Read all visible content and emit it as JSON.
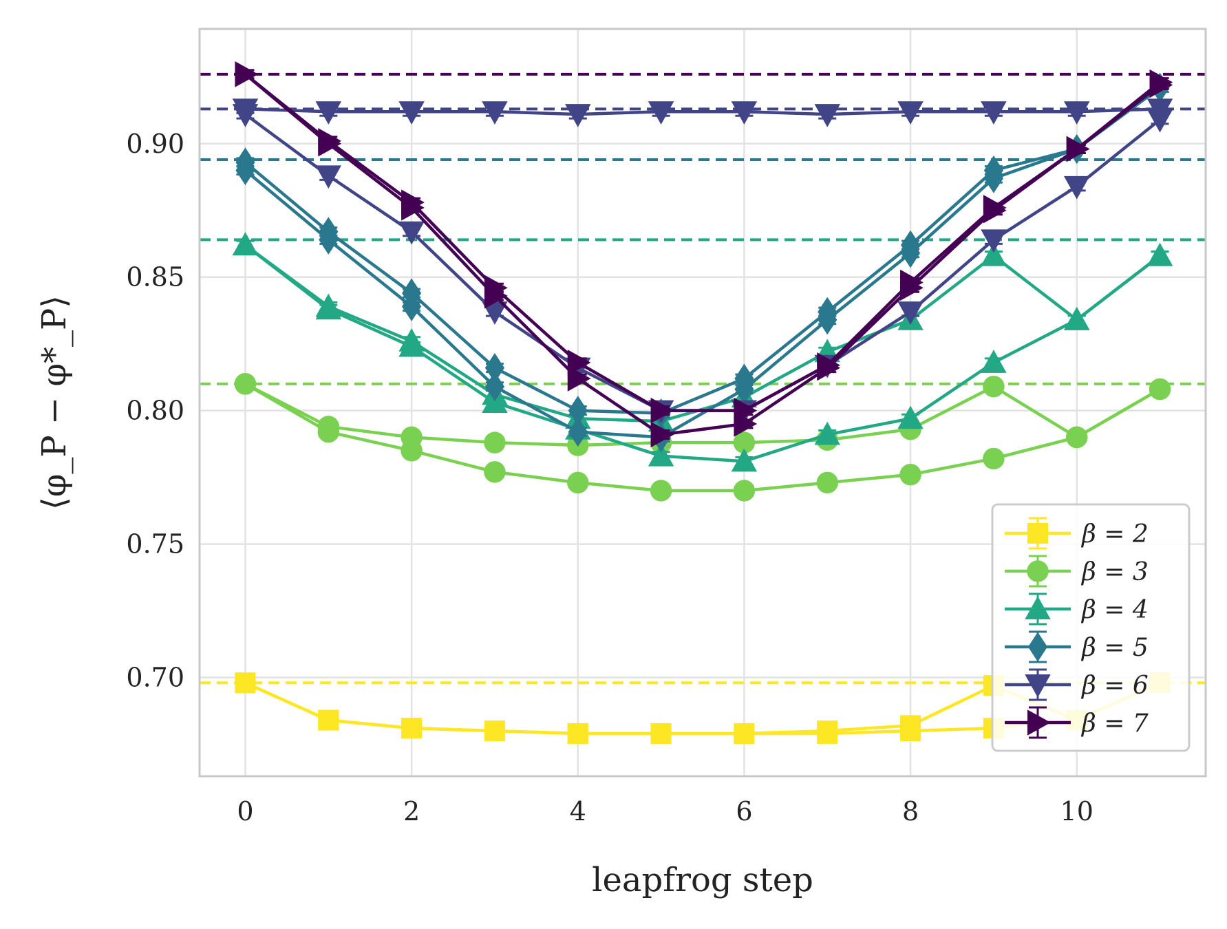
{
  "chart_data": {
    "type": "line",
    "xlabel": "leapfrog step",
    "ylabel": "⟨φ_P − φ*_P⟩",
    "xlim": [
      -0.55,
      11.55
    ],
    "ylim": [
      0.663,
      0.943
    ],
    "xticks": [
      0,
      2,
      4,
      6,
      8,
      10
    ],
    "xtick_labels": [
      "0",
      "2",
      "4",
      "6",
      "8",
      "10"
    ],
    "yticks": [
      0.7,
      0.75,
      0.8,
      0.85,
      0.9
    ],
    "ytick_labels": [
      "0.70",
      "0.75",
      "0.80",
      "0.85",
      "0.90"
    ],
    "grid": true,
    "legend_position": "bottom-right",
    "x": [
      0,
      1,
      2,
      3,
      4,
      5,
      6,
      7,
      8,
      9,
      10,
      11
    ],
    "series": [
      {
        "name": "β = 2",
        "color": "#fde725",
        "marker": "square",
        "reference": 0.698,
        "curves": [
          [
            0.698,
            0.684,
            0.681,
            0.68,
            0.679,
            0.679,
            0.679,
            0.68,
            0.682,
            0.697,
            0.684,
            0.698
          ],
          [
            0.698,
            0.684,
            0.681,
            0.68,
            0.679,
            0.679,
            0.679,
            0.679,
            0.68,
            0.681,
            0.684,
            0.698
          ]
        ]
      },
      {
        "name": "β = 3",
        "color": "#7ad151",
        "marker": "circle",
        "reference": 0.81,
        "curves": [
          [
            0.81,
            0.794,
            0.79,
            0.788,
            0.787,
            0.788,
            0.788,
            0.789,
            0.793,
            0.809,
            0.79,
            0.808
          ],
          [
            0.81,
            0.792,
            0.785,
            0.777,
            0.773,
            0.77,
            0.77,
            0.773,
            0.776,
            0.782,
            0.79,
            0.808
          ]
        ]
      },
      {
        "name": "β = 4",
        "color": "#22a884",
        "marker": "triangle-up",
        "reference": 0.864,
        "curves": [
          [
            0.862,
            0.839,
            0.826,
            0.806,
            0.797,
            0.796,
            0.805,
            0.822,
            0.834,
            0.858,
            0.834,
            0.858
          ],
          [
            0.862,
            0.838,
            0.824,
            0.803,
            0.793,
            0.783,
            0.781,
            0.791,
            0.797,
            0.818,
            0.834,
            0.858
          ]
        ]
      },
      {
        "name": "β = 5",
        "color": "#2a788e",
        "marker": "diamond",
        "reference": 0.894,
        "curves": [
          [
            0.893,
            0.867,
            0.844,
            0.816,
            0.8,
            0.799,
            0.812,
            0.837,
            0.862,
            0.89,
            0.898,
            0.921
          ],
          [
            0.89,
            0.864,
            0.839,
            0.809,
            0.792,
            0.79,
            0.808,
            0.834,
            0.859,
            0.887,
            0.898,
            0.921
          ]
        ]
      },
      {
        "name": "β = 6",
        "color": "#414487",
        "marker": "triangle-down",
        "reference": 0.913,
        "curves": [
          [
            0.913,
            0.912,
            0.912,
            0.912,
            0.911,
            0.912,
            0.912,
            0.911,
            0.912,
            0.912,
            0.912,
            0.913
          ],
          [
            0.911,
            0.888,
            0.867,
            0.837,
            0.816,
            0.8,
            0.8,
            0.817,
            0.837,
            0.864,
            0.884,
            0.909
          ]
        ]
      },
      {
        "name": "β = 7",
        "color": "#440154",
        "marker": "triangle-right",
        "reference": 0.926,
        "curves": [
          [
            0.926,
            0.901,
            0.878,
            0.846,
            0.818,
            0.8,
            0.8,
            0.817,
            0.848,
            0.876,
            0.898,
            0.923
          ],
          [
            0.926,
            0.9,
            0.876,
            0.843,
            0.812,
            0.791,
            0.795,
            0.816,
            0.846,
            0.875,
            0.898,
            0.922
          ]
        ]
      }
    ]
  }
}
